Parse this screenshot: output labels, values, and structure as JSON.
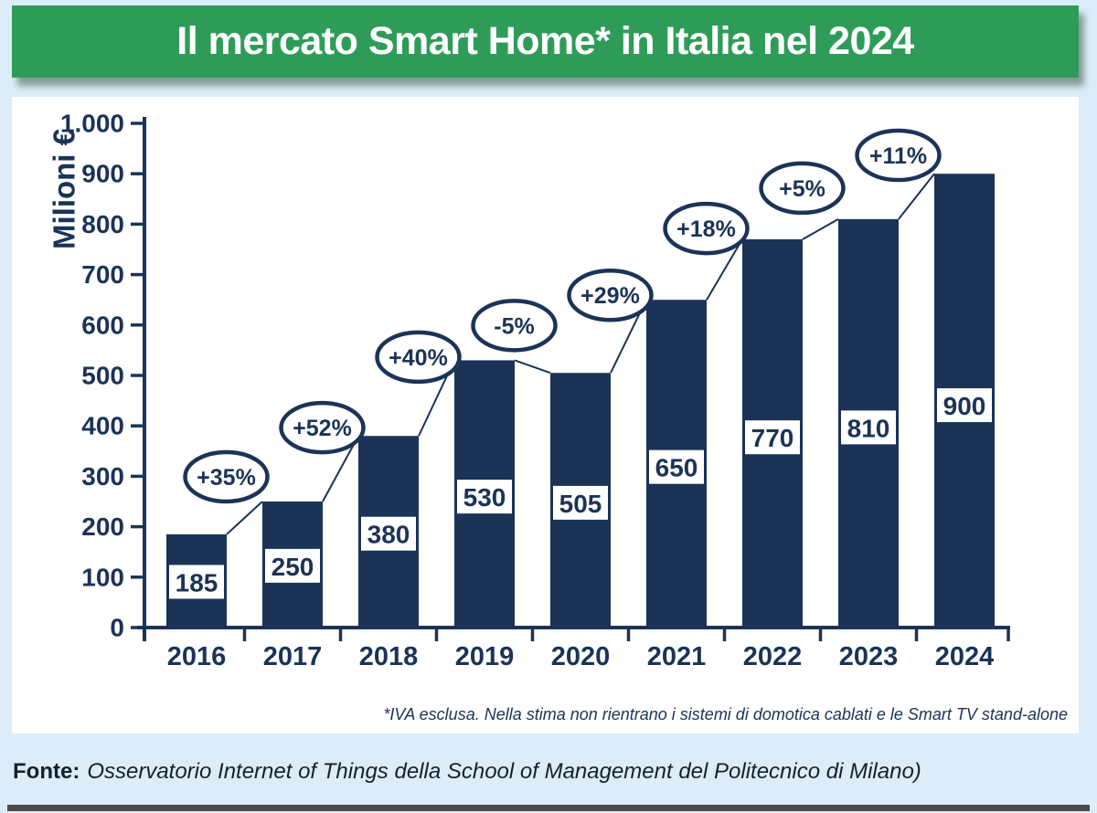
{
  "header": {
    "title": "Il mercato Smart Home* in Italia nel 2024"
  },
  "chart_data": {
    "type": "bar",
    "title": "Il mercato Smart Home* in Italia nel 2024",
    "categories": [
      "2016",
      "2017",
      "2018",
      "2019",
      "2020",
      "2021",
      "2022",
      "2023",
      "2024"
    ],
    "values": [
      185,
      250,
      380,
      530,
      505,
      650,
      770,
      810,
      900
    ],
    "growth_labels": [
      "+35%",
      "+52%",
      "+40%",
      "-5%",
      "+29%",
      "+18%",
      "+5%",
      "+11%"
    ],
    "xlabel": "",
    "ylabel": "Milioni €",
    "ylim": [
      0,
      1000
    ],
    "ytick_step": 100,
    "ytick_labels": [
      "0",
      "100",
      "200",
      "300",
      "400",
      "500",
      "600",
      "700",
      "800",
      "900",
      "1.000"
    ],
    "grid": false,
    "legend": false,
    "annotations": "percentage year-over-year growth shown in ovals above bars, thin trend lines connect consecutive bar tops, value labels in white boxes inside bars"
  },
  "footnote": "*IVA esclusa. Nella stima non rientrano i sistemi di domotica cablati e le Smart TV stand-alone",
  "source": {
    "label": "Fonte:",
    "text": "Osservatorio Internet of Things della School of Management del Politecnico di Milano)"
  },
  "colors": {
    "navy": "#1b3357",
    "green": "#2e9c58",
    "background": "#dcedf9",
    "panel": "#ffffff",
    "bottom_bar": "#4a4a4a"
  }
}
